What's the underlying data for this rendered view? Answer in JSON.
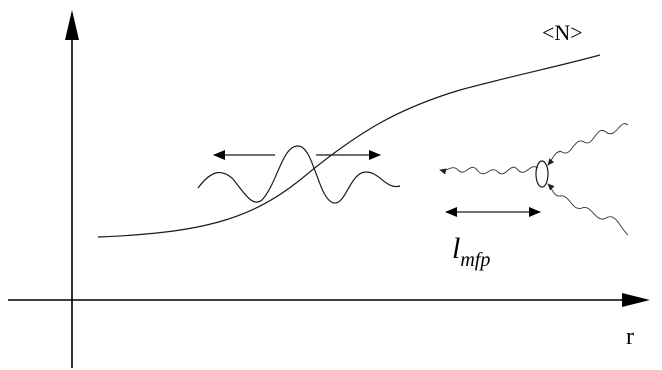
{
  "labels": {
    "curve_label": "<N>",
    "x_axis_label": "r",
    "mfp_symbol": "l",
    "mfp_subscript": "mfp"
  },
  "colors": {
    "ink": "#000000",
    "background": "#ffffff"
  }
}
